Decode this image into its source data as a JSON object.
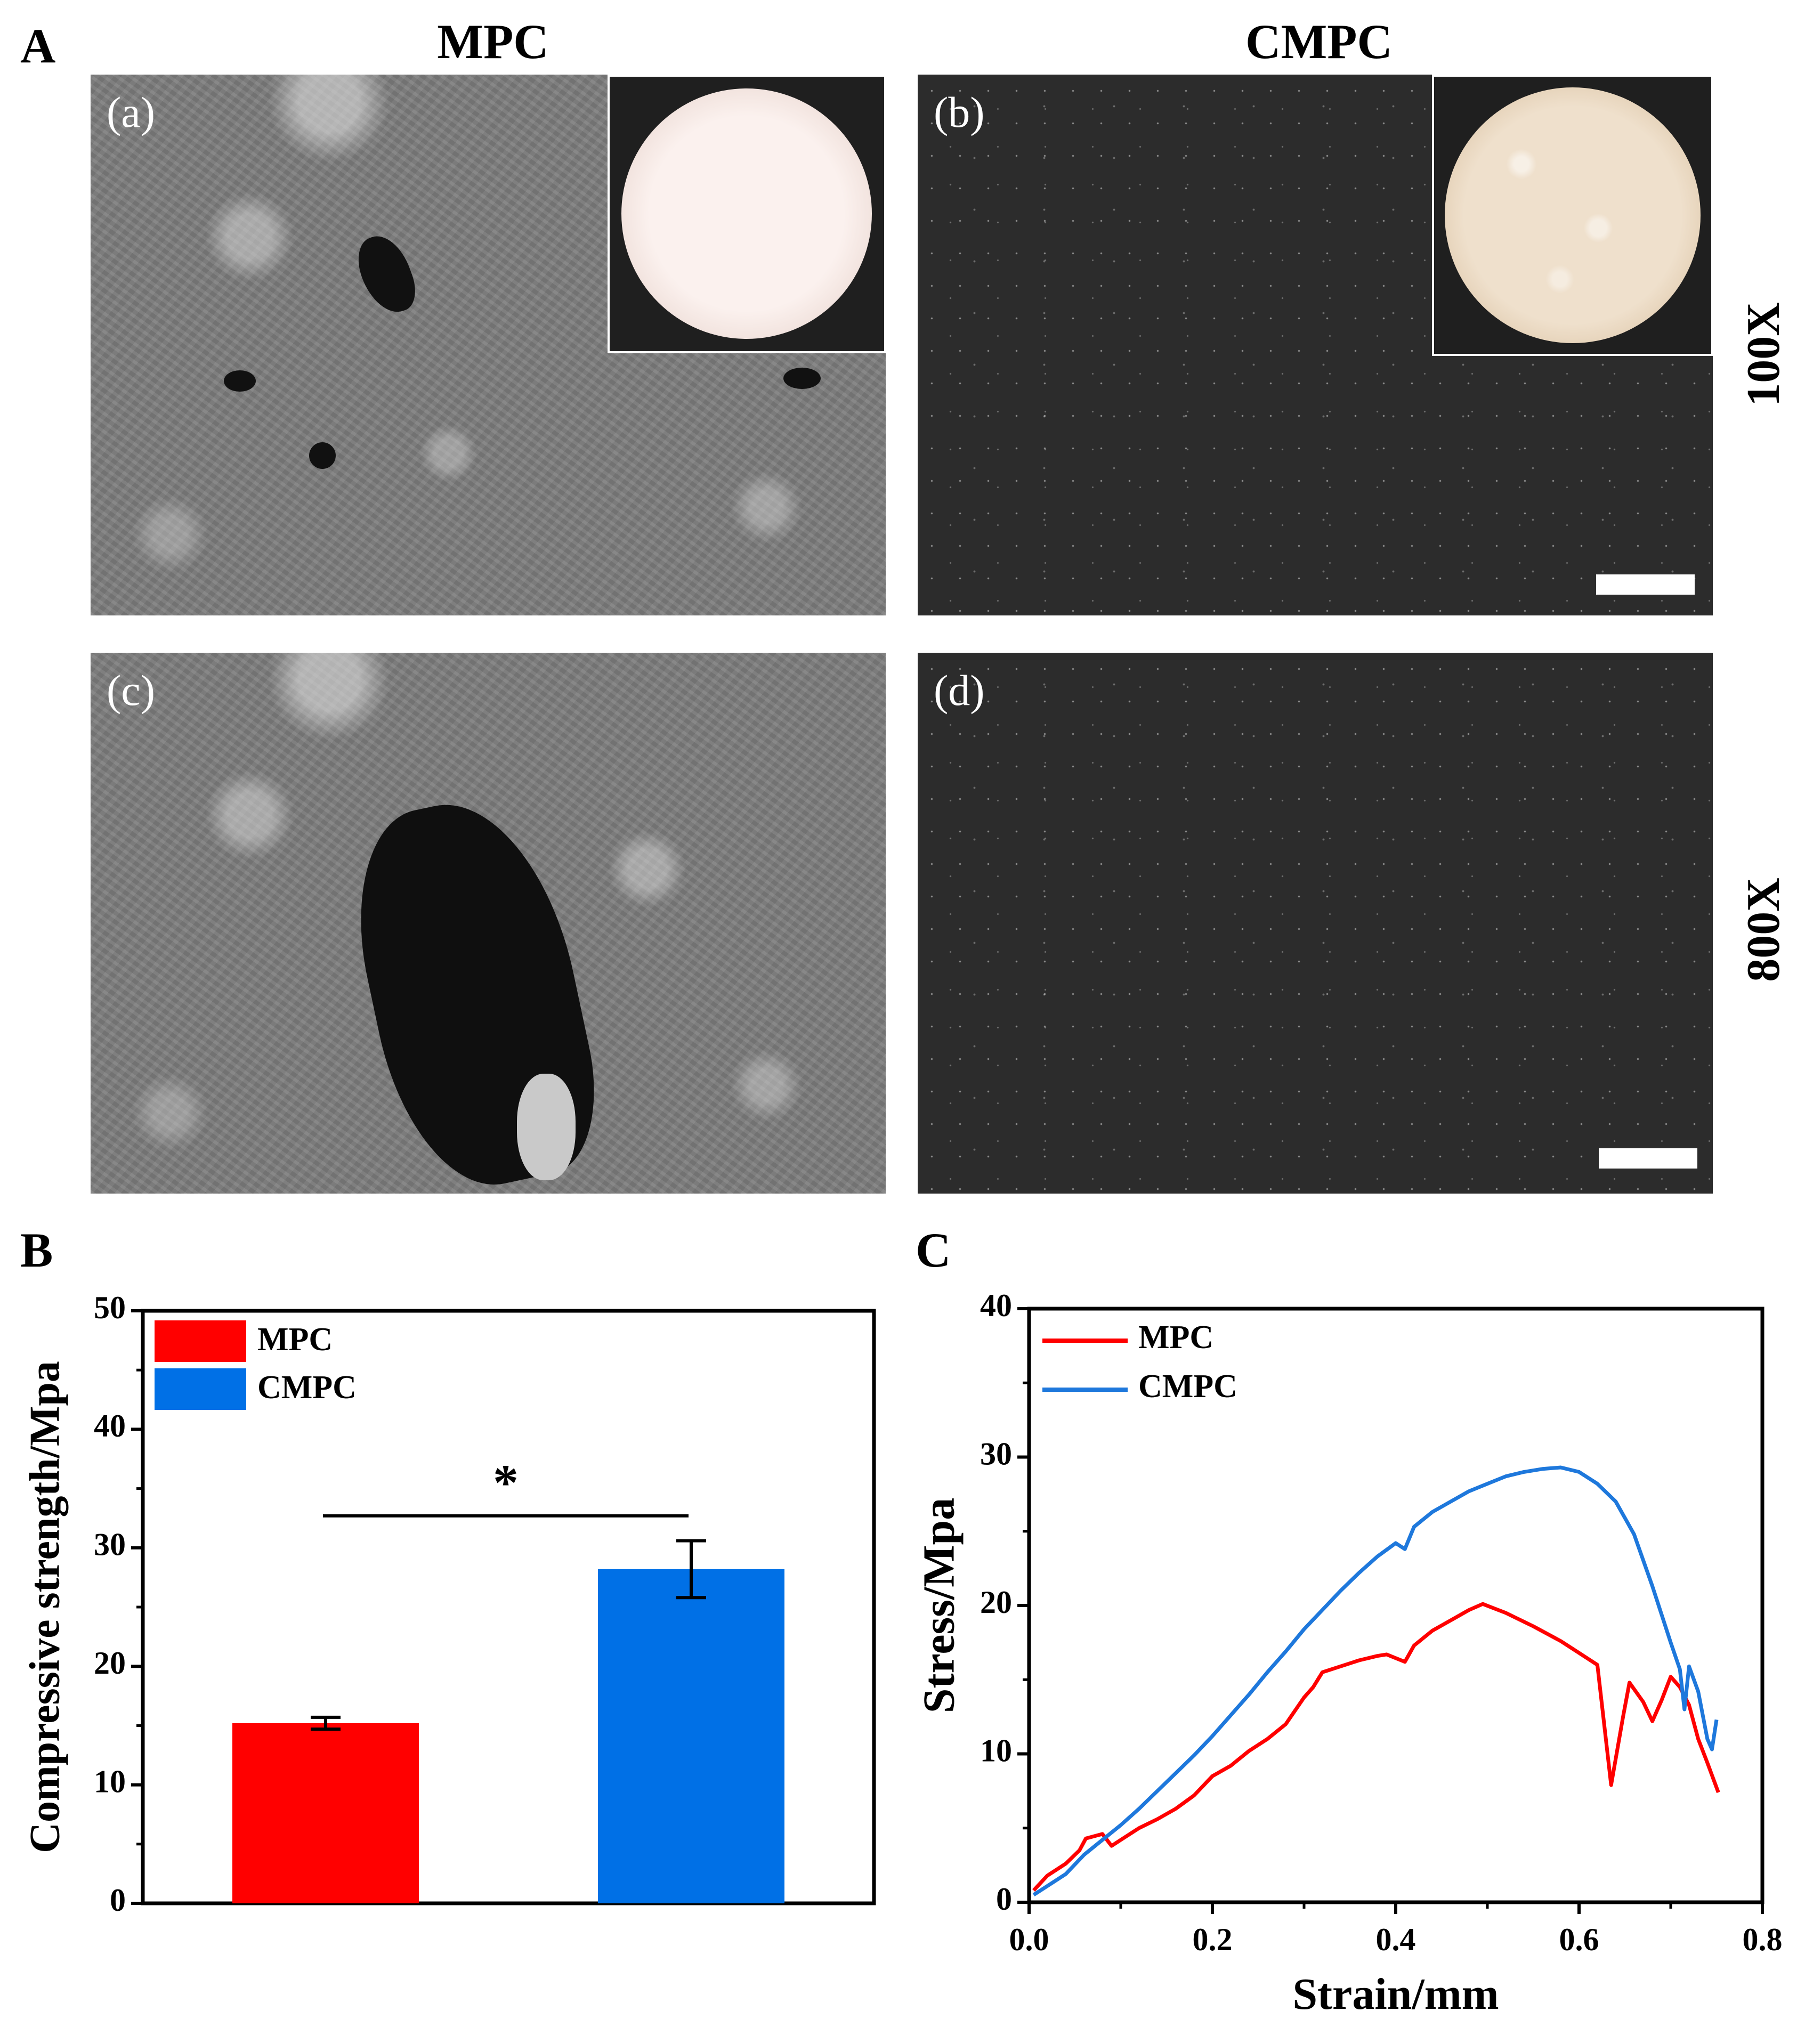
{
  "figure": {
    "panel_A": "A",
    "panel_B": "B",
    "panel_C": "C",
    "columns": [
      "MPC",
      "CMPC"
    ],
    "rows": [
      "100X",
      "800X"
    ],
    "subpanels": [
      "(a)",
      "(b)",
      "(c)",
      "(d)"
    ]
  },
  "chart_data": [
    {
      "type": "bar",
      "categories": [
        "MPC",
        "CMPC"
      ],
      "values": [
        15.2,
        28.2
      ],
      "errors": [
        0.5,
        2.4
      ],
      "colors": [
        "#ff0000",
        "#0070e6"
      ],
      "ylabel": "Compressive strength/Mpa",
      "xlabel": "",
      "ylim": [
        0,
        50
      ],
      "yticks": [
        "0",
        "10",
        "20",
        "30",
        "40",
        "50"
      ],
      "significance": "*",
      "legend": [
        {
          "name": "MPC",
          "color": "#ff0000"
        },
        {
          "name": "CMPC",
          "color": "#0070e6"
        }
      ],
      "legend_position": "top-left"
    },
    {
      "type": "line",
      "xlabel": "Strain/mm",
      "ylabel": "Stress/Mpa",
      "xlim": [
        0,
        0.8
      ],
      "ylim": [
        0,
        40
      ],
      "xticks": [
        "0.0",
        "0.2",
        "0.4",
        "0.6",
        "0.8"
      ],
      "yticks": [
        "0",
        "10",
        "20",
        "30",
        "40"
      ],
      "legend_position": "top-left",
      "series": [
        {
          "name": "MPC",
          "color": "#ff0000",
          "x": [
            0.005,
            0.02,
            0.04,
            0.055,
            0.062,
            0.08,
            0.09,
            0.1,
            0.12,
            0.14,
            0.16,
            0.18,
            0.2,
            0.22,
            0.24,
            0.26,
            0.28,
            0.3,
            0.31,
            0.32,
            0.34,
            0.36,
            0.38,
            0.39,
            0.41,
            0.42,
            0.44,
            0.46,
            0.48,
            0.495,
            0.52,
            0.55,
            0.58,
            0.6,
            0.62,
            0.635,
            0.648,
            0.655,
            0.67,
            0.68,
            0.69,
            0.7,
            0.71,
            0.72,
            0.73,
            0.74,
            0.752
          ],
          "y": [
            0.8,
            1.8,
            2.6,
            3.5,
            4.3,
            4.6,
            3.8,
            4.2,
            5.0,
            5.6,
            6.3,
            7.2,
            8.5,
            9.2,
            10.2,
            11.0,
            12.0,
            13.8,
            14.5,
            15.5,
            15.9,
            16.3,
            16.6,
            16.7,
            16.2,
            17.3,
            18.3,
            19.0,
            19.7,
            20.1,
            19.5,
            18.6,
            17.6,
            16.8,
            16.0,
            7.9,
            12.5,
            14.8,
            13.5,
            12.2,
            13.6,
            15.2,
            14.5,
            13.3,
            11.0,
            9.4,
            7.4
          ]
        },
        {
          "name": "CMPC",
          "color": "#1e78dc",
          "x": [
            0.005,
            0.02,
            0.04,
            0.06,
            0.08,
            0.1,
            0.12,
            0.14,
            0.16,
            0.18,
            0.2,
            0.22,
            0.24,
            0.26,
            0.28,
            0.3,
            0.32,
            0.34,
            0.36,
            0.38,
            0.4,
            0.41,
            0.42,
            0.44,
            0.46,
            0.48,
            0.5,
            0.52,
            0.54,
            0.56,
            0.58,
            0.6,
            0.62,
            0.64,
            0.66,
            0.68,
            0.7,
            0.71,
            0.715,
            0.72,
            0.73,
            0.74,
            0.745,
            0.75
          ],
          "y": [
            0.5,
            1.1,
            1.9,
            3.2,
            4.2,
            5.2,
            6.3,
            7.5,
            8.7,
            9.9,
            11.2,
            12.6,
            14.0,
            15.5,
            16.9,
            18.4,
            19.7,
            21.0,
            22.2,
            23.3,
            24.2,
            23.8,
            25.3,
            26.3,
            27.0,
            27.7,
            28.2,
            28.7,
            29.0,
            29.2,
            29.3,
            29.0,
            28.2,
            27.0,
            24.8,
            21.3,
            17.5,
            15.7,
            13.0,
            15.9,
            14.2,
            11.0,
            10.3,
            12.3
          ]
        }
      ]
    }
  ]
}
